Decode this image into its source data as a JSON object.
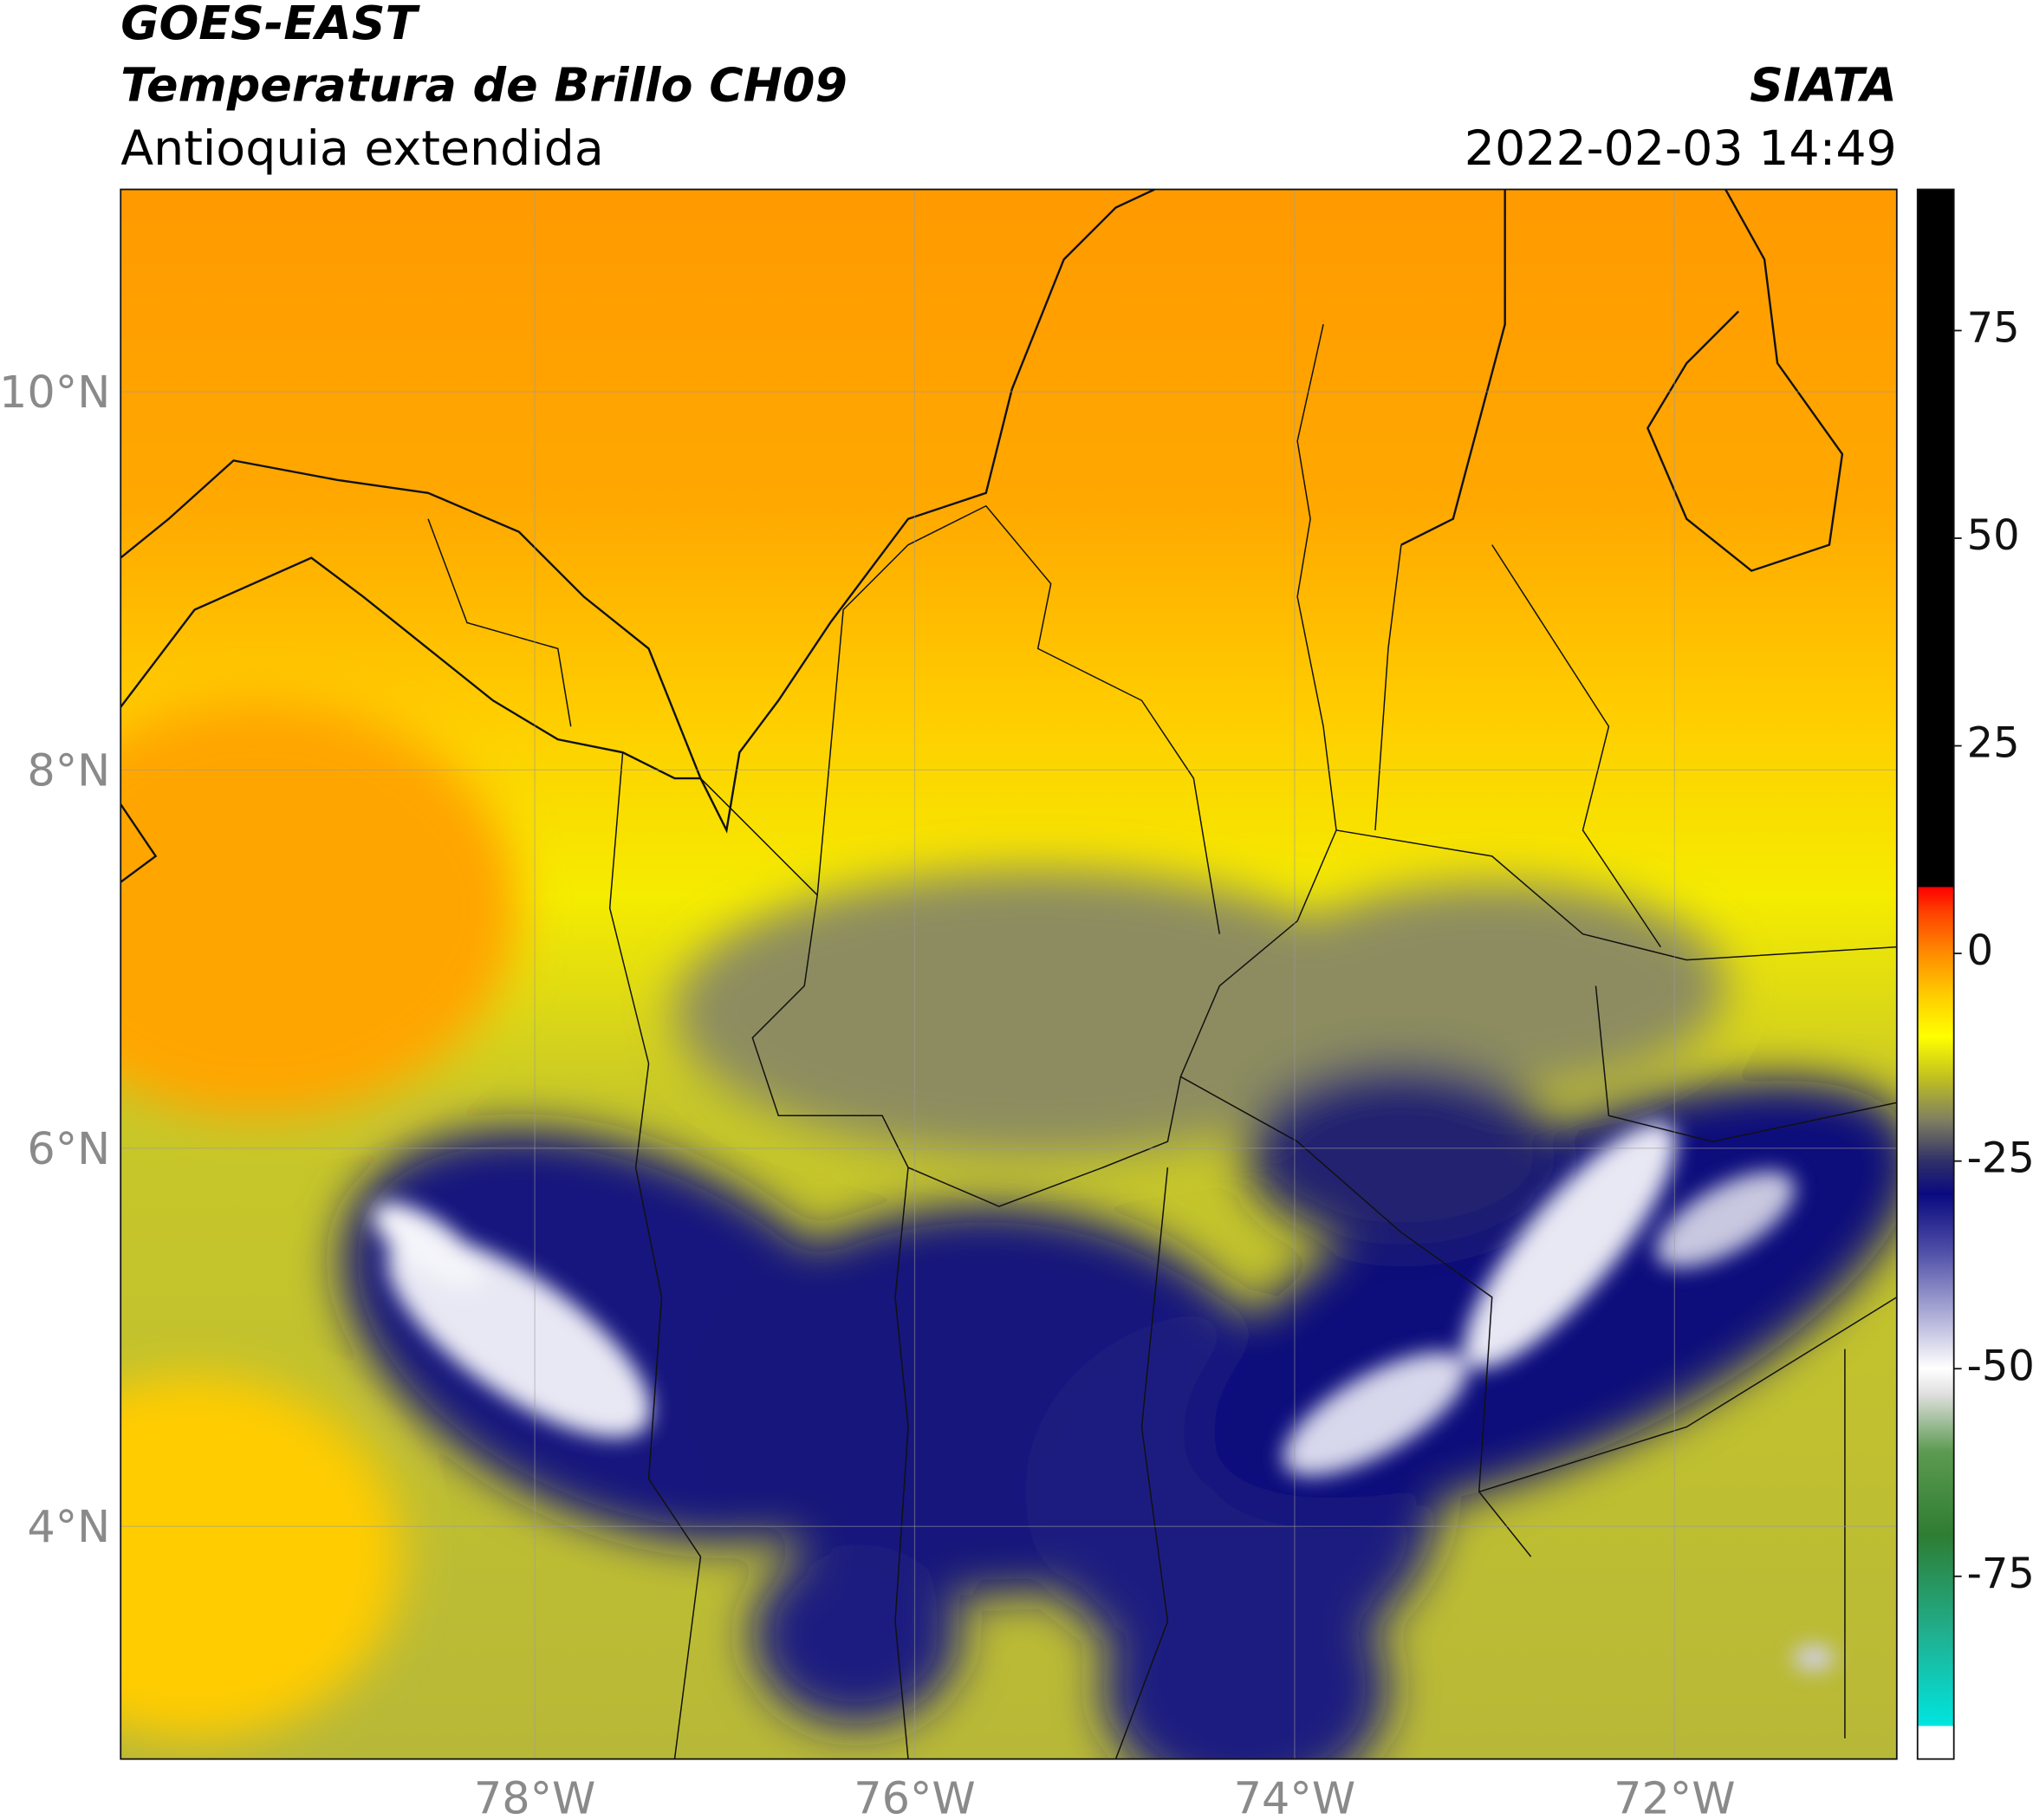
{
  "chart_data": {
    "type": "map",
    "title": "GOES-EAST",
    "subtitle": "Temperatura de Brillo CH09",
    "region": "Antioquia extendida",
    "source": "SIATA",
    "datetime": "2022-02-03 14:49",
    "xlim": [
      -80.18,
      -70.83
    ],
    "ylim": [
      2.77,
      11.07
    ],
    "xticks": [
      {
        "value": -78,
        "label": "78°W"
      },
      {
        "value": -76,
        "label": "76°W"
      },
      {
        "value": -74,
        "label": "74°W"
      },
      {
        "value": -72,
        "label": "72°W"
      }
    ],
    "yticks": [
      {
        "value": 10,
        "label": "10°N"
      },
      {
        "value": 8,
        "label": "8°N"
      },
      {
        "value": 6,
        "label": "6°N"
      },
      {
        "value": 4,
        "label": "4°N"
      }
    ],
    "grid": true,
    "clim": [
      -97,
      92
    ],
    "cticks": [
      75,
      50,
      25,
      0,
      -25,
      -50,
      -75
    ],
    "colorscale": [
      [
        -97,
        "#ffffff"
      ],
      [
        -93,
        "#ffffff"
      ],
      [
        -93,
        "#00e5e0"
      ],
      [
        -82,
        "#20b090"
      ],
      [
        -70,
        "#2e7d32"
      ],
      [
        -60,
        "#5c9a50"
      ],
      [
        -53,
        "#e0e0e0"
      ],
      [
        -50,
        "#ffffff"
      ],
      [
        -45,
        "#c0c0e0"
      ],
      [
        -36,
        "#5050a8"
      ],
      [
        -29,
        "#0a0a80"
      ],
      [
        -25,
        "#303068"
      ],
      [
        -20,
        "#808060"
      ],
      [
        -15,
        "#c0c020"
      ],
      [
        -10,
        "#ffff00"
      ],
      [
        -5,
        "#ffcc00"
      ],
      [
        0,
        "#ff8c00"
      ],
      [
        5,
        "#ff4000"
      ],
      [
        8,
        "#ff0000"
      ],
      [
        8,
        "#000000"
      ],
      [
        92,
        "#000000"
      ]
    ]
  }
}
